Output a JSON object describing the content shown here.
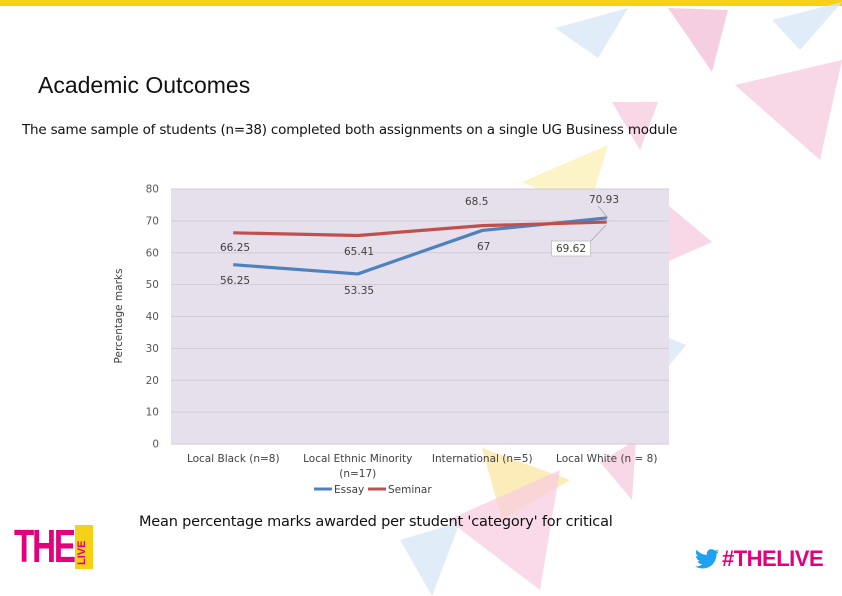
{
  "slide": {
    "title": "Academic Outcomes",
    "subtitle": "The same sample of students (n=38) completed both assignments on a single UG Business module",
    "caption": "Mean percentage marks awarded per student 'category' for critical",
    "logo_text": "THE",
    "logo_side_text": "LIVE",
    "hashtag": "#THELIVE",
    "accent_colors": {
      "yellow": "#f7d117",
      "pink": "#e4007c",
      "twitter_blue": "#1da1f2"
    }
  },
  "chart_data": {
    "type": "line",
    "ylabel": "Percentage marks",
    "ylim": [
      0,
      80
    ],
    "yticks": [
      0,
      10,
      20,
      30,
      40,
      50,
      60,
      70,
      80
    ],
    "categories": [
      [
        "Local Black  (n=8)"
      ],
      [
        "Local Ethnic Minority",
        "(n=17)"
      ],
      [
        "International  (n=5)"
      ],
      [
        "Local White  (n = 8)"
      ]
    ],
    "series": [
      {
        "name": "Essay",
        "color": "#4f81bd",
        "values": [
          56.25,
          53.35,
          67,
          70.93
        ],
        "labels": [
          "56.25",
          "53.35",
          "67",
          "70.93"
        ]
      },
      {
        "name": "Seminar",
        "color": "#c0504d",
        "values": [
          66.25,
          65.41,
          68.5,
          69.62
        ],
        "labels": [
          "66.25",
          "65.41",
          "68.5",
          "69.62"
        ]
      }
    ],
    "legend_position": "bottom",
    "grid": true,
    "plot_background": "#e6e0ec"
  }
}
